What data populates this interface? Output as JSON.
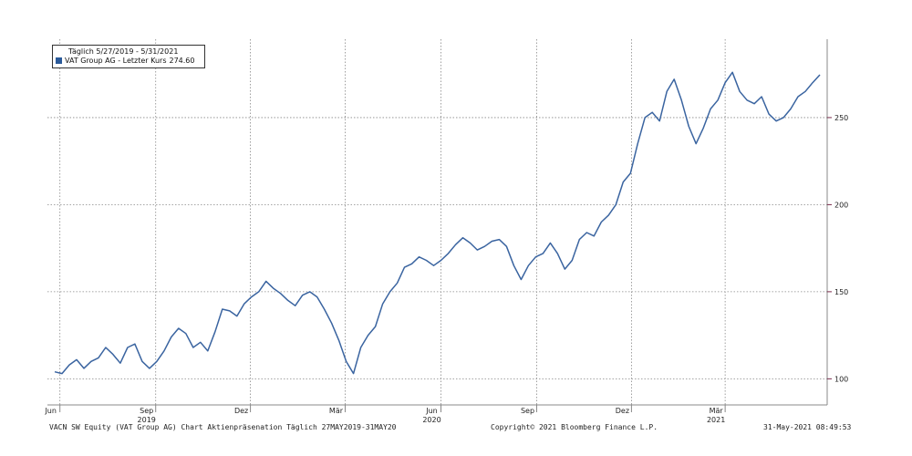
{
  "chart_data": {
    "type": "line",
    "legend_title": "Täglich 5/27/2019 - 5/31/2021",
    "legend_placement": "top-left",
    "series": [
      {
        "name": "VAT Group AG - Letzter Kurs",
        "last_value_label": "274.60",
        "color": "#3a64a0",
        "x": [
          "2019-05-27",
          "2019-06-03",
          "2019-06-10",
          "2019-06-17",
          "2019-06-24",
          "2019-07-01",
          "2019-07-08",
          "2019-07-15",
          "2019-07-22",
          "2019-07-29",
          "2019-08-05",
          "2019-08-12",
          "2019-08-19",
          "2019-08-26",
          "2019-09-02",
          "2019-09-09",
          "2019-09-16",
          "2019-09-23",
          "2019-09-30",
          "2019-10-07",
          "2019-10-14",
          "2019-10-21",
          "2019-10-28",
          "2019-11-04",
          "2019-11-11",
          "2019-11-18",
          "2019-11-25",
          "2019-12-02",
          "2019-12-09",
          "2019-12-16",
          "2019-12-23",
          "2019-12-30",
          "2020-01-06",
          "2020-01-13",
          "2020-01-20",
          "2020-01-27",
          "2020-02-03",
          "2020-02-10",
          "2020-02-17",
          "2020-02-24",
          "2020-03-02",
          "2020-03-09",
          "2020-03-16",
          "2020-03-23",
          "2020-03-30",
          "2020-04-06",
          "2020-04-13",
          "2020-04-20",
          "2020-04-27",
          "2020-05-04",
          "2020-05-11",
          "2020-05-18",
          "2020-05-25",
          "2020-06-01",
          "2020-06-08",
          "2020-06-15",
          "2020-06-22",
          "2020-06-29",
          "2020-07-06",
          "2020-07-13",
          "2020-07-20",
          "2020-07-27",
          "2020-08-03",
          "2020-08-10",
          "2020-08-17",
          "2020-08-24",
          "2020-08-31",
          "2020-09-07",
          "2020-09-14",
          "2020-09-21",
          "2020-09-28",
          "2020-10-05",
          "2020-10-12",
          "2020-10-19",
          "2020-10-26",
          "2020-11-02",
          "2020-11-09",
          "2020-11-16",
          "2020-11-23",
          "2020-11-30",
          "2020-12-07",
          "2020-12-14",
          "2020-12-21",
          "2020-12-28",
          "2021-01-04",
          "2021-01-11",
          "2021-01-18",
          "2021-01-25",
          "2021-02-01",
          "2021-02-08",
          "2021-02-15",
          "2021-02-22",
          "2021-03-01",
          "2021-03-08",
          "2021-03-15",
          "2021-03-22",
          "2021-03-29",
          "2021-04-05",
          "2021-04-12",
          "2021-04-19",
          "2021-04-26",
          "2021-05-03",
          "2021-05-10",
          "2021-05-17",
          "2021-05-24",
          "2021-05-31"
        ],
        "values": [
          104,
          103,
          108,
          111,
          106,
          110,
          112,
          118,
          114,
          109,
          118,
          120,
          110,
          106,
          110,
          116,
          124,
          129,
          126,
          118,
          121,
          116,
          127,
          140,
          139,
          136,
          143,
          147,
          150,
          156,
          152,
          149,
          145,
          142,
          148,
          150,
          147,
          140,
          132,
          122,
          110,
          103,
          118,
          125,
          130,
          143,
          150,
          155,
          164,
          166,
          170,
          168,
          165,
          168,
          172,
          177,
          181,
          178,
          174,
          176,
          179,
          180,
          176,
          165,
          157,
          165,
          170,
          172,
          178,
          172,
          163,
          168,
          180,
          184,
          182,
          190,
          194,
          200,
          213,
          218,
          235,
          250,
          253,
          248,
          265,
          272,
          260,
          245,
          235,
          244,
          255,
          260,
          270,
          276,
          265,
          260,
          258,
          262,
          252,
          248,
          250,
          255,
          262,
          265,
          270,
          274.6
        ]
      }
    ],
    "y_axis": {
      "position": "right",
      "ticks": [
        100,
        150,
        200,
        250
      ],
      "ylim": [
        85,
        295
      ]
    },
    "x_axis": {
      "range": [
        "2019-05-20",
        "2021-06-07"
      ],
      "tick_labels": [
        {
          "date": "2019-06-01",
          "label": "Jun"
        },
        {
          "date": "2019-09-01",
          "label": "Sep"
        },
        {
          "date": "2019-12-01",
          "label": "Dez"
        },
        {
          "date": "2020-03-01",
          "label": "Mär"
        },
        {
          "date": "2020-06-01",
          "label": "Jun"
        },
        {
          "date": "2020-09-01",
          "label": "Sep"
        },
        {
          "date": "2020-12-01",
          "label": "Dez"
        },
        {
          "date": "2021-03-01",
          "label": "Mär"
        }
      ],
      "year_labels": [
        {
          "date": "2019-09-01",
          "label": "2019"
        },
        {
          "date": "2020-06-01",
          "label": "2020"
        },
        {
          "date": "2021-03-01",
          "label": "2021"
        }
      ]
    },
    "grid": true
  },
  "footer": {
    "left": "VACN SW Equity (VAT Group AG) Chart Aktienpräsenation  Täglich 27MAY2019-31MAY20",
    "center": "Copyright© 2021 Bloomberg Finance L.P.",
    "right": "31-May-2021 08:49:53"
  }
}
